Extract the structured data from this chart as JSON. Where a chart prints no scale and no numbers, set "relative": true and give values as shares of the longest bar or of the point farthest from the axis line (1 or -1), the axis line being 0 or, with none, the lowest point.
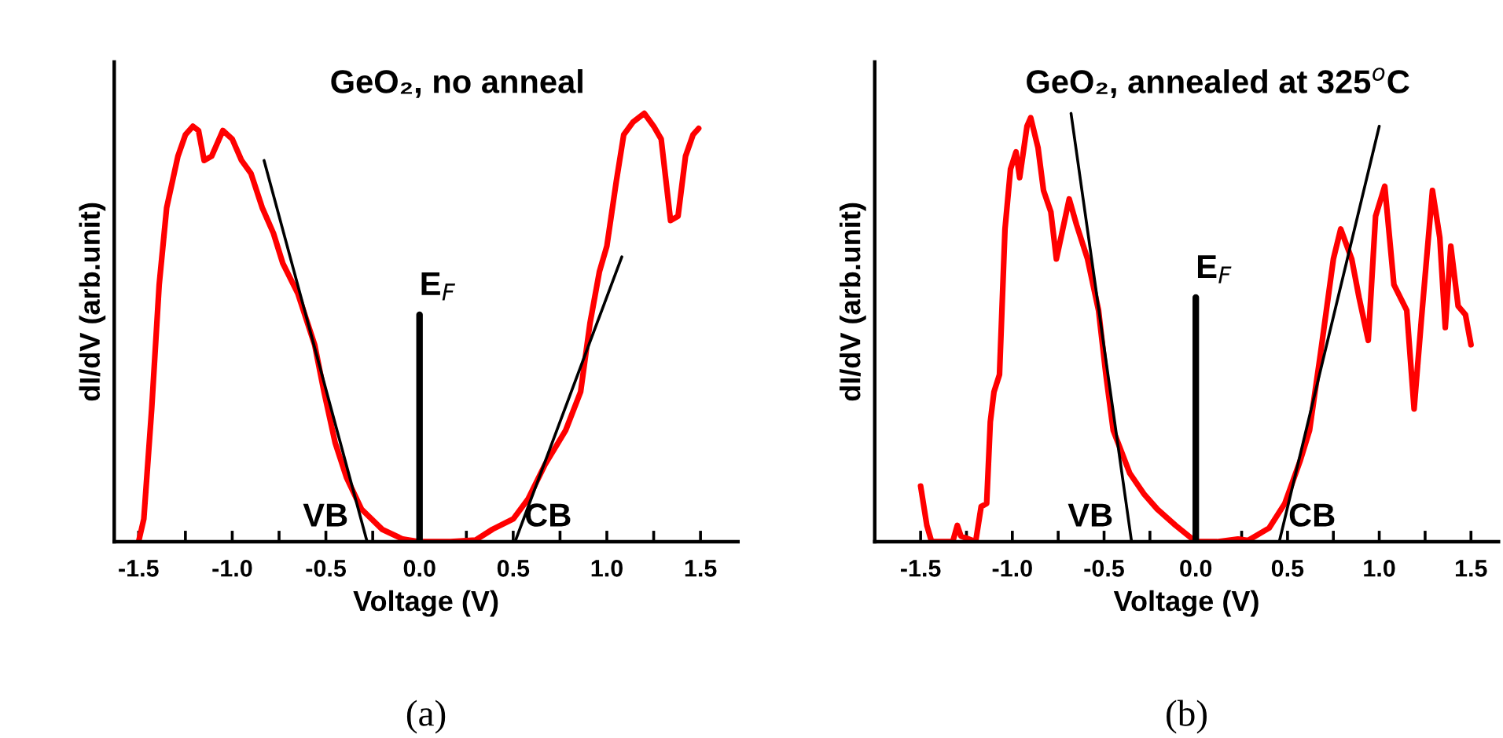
{
  "chart_data": [
    {
      "type": "line",
      "title": "GeO₂, no anneal",
      "xlabel": "Voltage (V)",
      "ylabel": "dI/dV (arb.unit)",
      "relative": true,
      "grid": false,
      "legend": false,
      "xlim": [
        -1.63,
        1.7
      ],
      "xticks": [
        -1.5,
        {
          "value": -1.25,
          "label": null
        },
        {
          "value": -1.0,
          "label": "-1.0"
        },
        {
          "value": -0.75,
          "label": null
        },
        -0.5,
        {
          "value": -0.25,
          "label": null
        },
        {
          "value": 0,
          "label": "0.0"
        },
        {
          "value": 0.25,
          "label": null
        },
        0.5,
        {
          "value": 0.75,
          "label": null
        },
        {
          "value": 1.0,
          "label": "1.0"
        },
        {
          "value": 1.25,
          "label": null
        },
        1.5
      ],
      "annotations": [
        "(a)"
      ],
      "series": [
        {
          "color": "#ff0000",
          "x": [
            -1.5,
            -1.472,
            -1.43,
            -1.39,
            -1.35,
            -1.29,
            -1.25,
            -1.21,
            -1.18,
            -1.15,
            -1.11,
            -1.05,
            -1.0,
            -0.95,
            -0.9,
            -0.84,
            -0.78,
            -0.73,
            -0.65,
            -0.56,
            -0.51,
            -0.45,
            -0.39,
            -0.31,
            -0.2,
            -0.09,
            0,
            0.165,
            0.3,
            0.39,
            0.5,
            0.58,
            0.67,
            0.78,
            0.86,
            0.91,
            0.96,
            1.0,
            1.05,
            1.09,
            1.14,
            1.2,
            1.25,
            1.29,
            1.34,
            1.38,
            1.42,
            1.46,
            1.49
          ],
          "values": [
            0,
            0.053,
            0.31,
            0.6,
            0.78,
            0.9,
            0.95,
            0.97,
            0.96,
            0.89,
            0.9,
            0.96,
            0.94,
            0.89,
            0.86,
            0.78,
            0.72,
            0.65,
            0.58,
            0.46,
            0.35,
            0.23,
            0.15,
            0.076,
            0.029,
            0.006,
            0,
            0,
            0.004,
            0.029,
            0.053,
            0.1,
            0.18,
            0.26,
            0.35,
            0.51,
            0.63,
            0.69,
            0.84,
            0.95,
            0.98,
            1.0,
            0.97,
            0.94,
            0.75,
            0.76,
            0.9,
            0.95,
            0.965
          ]
        },
        {
          "name": "VB",
          "color": "#000000",
          "x": [
            -0.83,
            -0.28
          ],
          "values": [
            0.89,
            0
          ]
        },
        {
          "name": "CB",
          "color": "#000000",
          "x": [
            0.51,
            1.08
          ],
          "values": [
            0,
            0.665
          ]
        },
        {
          "name": "E$_{F}$",
          "color": "#000000",
          "x": [
            0,
            0
          ],
          "values": [
            0,
            0.53
          ]
        }
      ]
    },
    {
      "type": "line",
      "title": "GeO₂, annealed at 325$^{o}$C",
      "xlabel": "Voltage (V)",
      "ylabel": "dI/dV (arb.unit)",
      "relative": true,
      "grid": false,
      "legend": false,
      "xlim": [
        -1.75,
        1.65
      ],
      "xticks": [
        -1.5,
        {
          "value": -1.25,
          "label": null
        },
        {
          "value": -1.0,
          "label": "-1.0"
        },
        {
          "value": -0.75,
          "label": null
        },
        -0.5,
        {
          "value": -0.25,
          "label": null
        },
        {
          "value": 0,
          "label": "0.0"
        },
        {
          "value": 0.25,
          "label": null
        },
        0.5,
        {
          "value": 0.75,
          "label": null
        },
        {
          "value": 1.0,
          "label": "1.0"
        },
        {
          "value": 1.25,
          "label": null
        },
        1.5
      ],
      "annotations": [
        "(b)"
      ],
      "series": [
        {
          "color": "#ff0000",
          "x": [
            -1.5,
            -1.466,
            -1.44,
            -1.325,
            -1.3,
            -1.28,
            -1.2,
            -1.17,
            -1.14,
            -1.12,
            -1.1,
            -1.07,
            -1.04,
            -1.01,
            -0.98,
            -0.96,
            -0.92,
            -0.9,
            -0.86,
            -0.83,
            -0.79,
            -0.76,
            -0.69,
            -0.65,
            -0.59,
            -0.53,
            -0.49,
            -0.45,
            -0.36,
            -0.28,
            -0.21,
            -0.11,
            0,
            0.116,
            0.23,
            0.285,
            0.4,
            0.485,
            0.57,
            0.62,
            0.68,
            0.75,
            0.79,
            0.85,
            0.89,
            0.94,
            0.98,
            1.03,
            1.08,
            1.15,
            1.19,
            1.23,
            1.29,
            1.33,
            1.36,
            1.39,
            1.43,
            1.47,
            1.5
          ],
          "values": [
            0.13,
            0.038,
            0,
            0,
            0.038,
            0.013,
            0,
            0.082,
            0.089,
            0.28,
            0.35,
            0.39,
            0.73,
            0.87,
            0.91,
            0.85,
            0.97,
            0.99,
            0.92,
            0.82,
            0.77,
            0.66,
            0.8,
            0.74,
            0.66,
            0.54,
            0.39,
            0.26,
            0.16,
            0.11,
            0.076,
            0.038,
            0,
            0,
            0.006,
            0.003,
            0.032,
            0.089,
            0.19,
            0.26,
            0.44,
            0.66,
            0.73,
            0.66,
            0.57,
            0.47,
            0.76,
            0.83,
            0.6,
            0.54,
            0.31,
            0.52,
            0.82,
            0.71,
            0.5,
            0.69,
            0.55,
            0.53,
            0.46
          ]
        },
        {
          "name": "VB",
          "color": "#000000",
          "x": [
            -0.68,
            -0.35
          ],
          "values": [
            1.0,
            0
          ]
        },
        {
          "name": "CB",
          "color": "#000000",
          "x": [
            0.455,
            1.0
          ],
          "values": [
            0,
            0.97
          ]
        },
        {
          "name": "E$_{F}$",
          "color": "#000000",
          "x": [
            0,
            0
          ],
          "values": [
            0,
            0.57
          ]
        }
      ]
    }
  ]
}
